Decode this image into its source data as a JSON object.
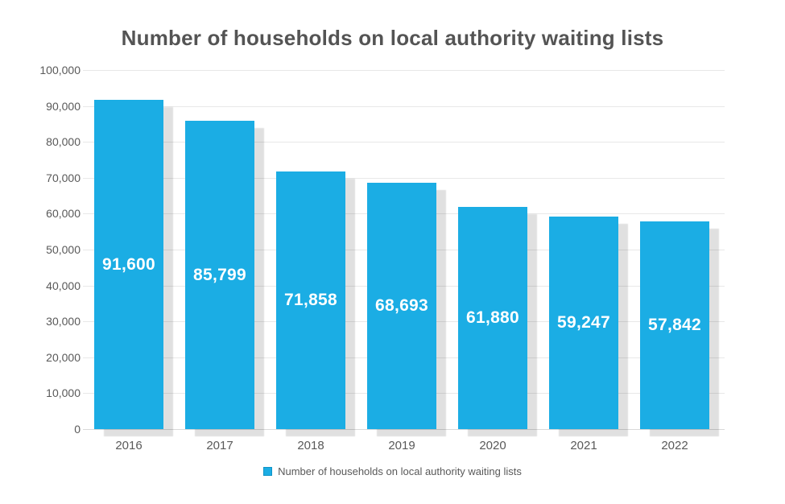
{
  "title": "Number of households on local authority waiting lists",
  "colors": {
    "bar": "#1bade4",
    "title_text": "#545454",
    "axis_text": "#595959",
    "gridline": "#e8e8e8",
    "bar_label_text": "#ffffff"
  },
  "legend": {
    "swatch_icon": "blue-square-swatch",
    "label": "Number of households on local authority waiting lists",
    "position": "bottom"
  },
  "chart_data": {
    "type": "bar",
    "title": "Number of households on local authority waiting lists",
    "categories": [
      "2016",
      "2017",
      "2018",
      "2019",
      "2020",
      "2021",
      "2022"
    ],
    "values": [
      91600,
      85799,
      71858,
      68693,
      61880,
      59247,
      57842
    ],
    "value_labels": [
      "91,600",
      "85,799",
      "71,858",
      "68,693",
      "61,880",
      "59,247",
      "57,842"
    ],
    "xlabel": "",
    "ylabel": "",
    "ylim": [
      0,
      100000
    ],
    "y_ticks": [
      {
        "value": 0,
        "label": "0"
      },
      {
        "value": 10000,
        "label": "10,000"
      },
      {
        "value": 20000,
        "label": "20,000"
      },
      {
        "value": 30000,
        "label": "30,000"
      },
      {
        "value": 40000,
        "label": "40,000"
      },
      {
        "value": 50000,
        "label": "50,000"
      },
      {
        "value": 60000,
        "label": "60,000"
      },
      {
        "value": 70000,
        "label": "70,000"
      },
      {
        "value": 80000,
        "label": "80,000"
      },
      {
        "value": 90000,
        "label": "90,000"
      },
      {
        "value": 100000,
        "label": "100,000"
      }
    ],
    "grid": "horizontal",
    "legend_position": "bottom",
    "legend_entries": [
      "Number of households on local authority waiting lists"
    ],
    "bar_color": "#1bade4",
    "data_label_position": "center-inside",
    "data_label_color": "#ffffff"
  }
}
